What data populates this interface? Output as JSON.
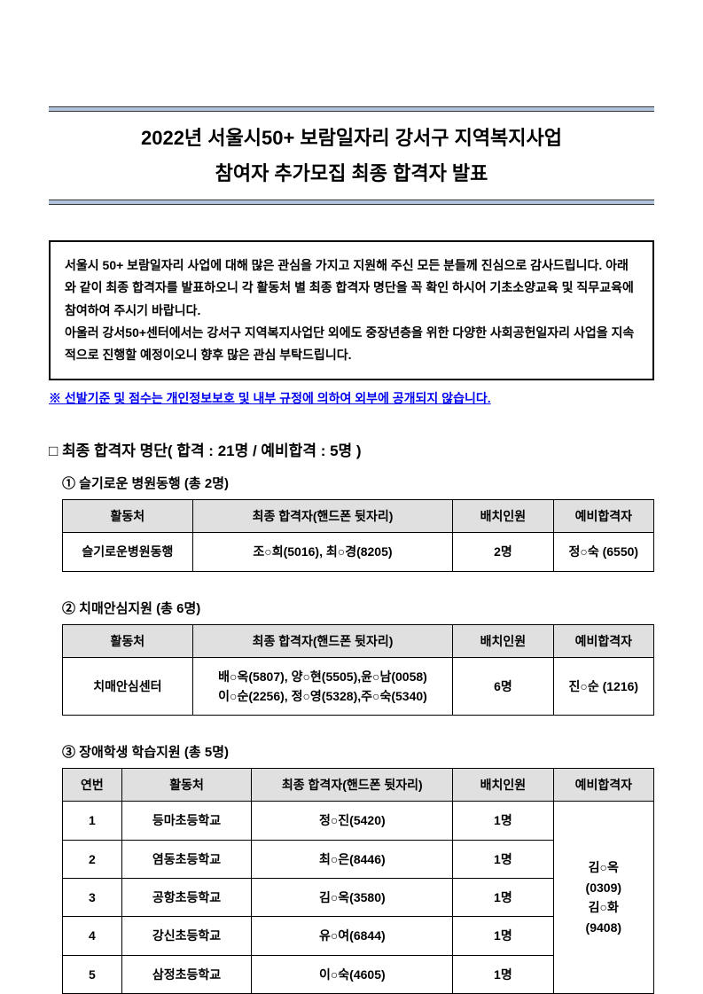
{
  "title": {
    "line1": "2022년 서울시50+ 보람일자리 강서구 지역복지사업",
    "line2": "참여자 추가모집 최종 합격자 발표"
  },
  "notice": {
    "p1": "서울시 50+ 보람일자리 사업에 대해 많은 관심을 가지고 지원해 주신 모든 분들께 진심으로 감사드립니다. 아래와 같이 최종 합격자를  발표하오니 각 활동처 별 최종 합격자 명단을 꼭 확인 하시어 기초소양교육 및 직무교육에 참여하여 주시기 바랍니다.",
    "p2": "아울러 강서50+센터에서는 강서구 지역복지사업단 외에도 중장년층을 위한 다양한 사회공헌일자리 사업을 지속적으로 진행할 예정이오니 향후 많은 관심 부탁드립니다."
  },
  "disclaimer": "※ 선발기준 및 점수는 개인정보보호 및 내부 규정에 의하여 외부에 공개되지 않습니다.",
  "section_header": "□ 최종 합격자 명단( 합격 : 21명 / 예비합격 : 5명 )",
  "headers": {
    "no": "연번",
    "location": "활동처",
    "passed": "최종 합격자(핸드폰 뒷자리)",
    "count": "배치인원",
    "waiting": "예비합격자"
  },
  "section1": {
    "title": "① 슬기로운 병원동행 (총 2명)",
    "row": {
      "location": "슬기로운병원동행",
      "passed": "조○희(5016), 최○경(8205)",
      "count": "2명",
      "waiting": "정○숙 (6550)"
    }
  },
  "section2": {
    "title": "② 치매안심지원 (총 6명)",
    "row": {
      "location": "치매안심센터",
      "passed_line1": "배○옥(5807), 양○현(5505),윤○남(0058)",
      "passed_line2": "이○순(2256), 정○영(5328),주○숙(5340)",
      "count": "6명",
      "waiting": "진○순 (1216)"
    }
  },
  "section3": {
    "title": "③ 장애학생 학습지원 (총 5명)",
    "rows": [
      {
        "no": "1",
        "location": "등마초등학교",
        "passed": "정○진(5420)",
        "count": "1명"
      },
      {
        "no": "2",
        "location": "염동초등학교",
        "passed": "최○은(8446)",
        "count": "1명"
      },
      {
        "no": "3",
        "location": "공항초등학교",
        "passed": "김○옥(3580)",
        "count": "1명"
      },
      {
        "no": "4",
        "location": "강신초등학교",
        "passed": "유○여(6844)",
        "count": "1명"
      },
      {
        "no": "5",
        "location": "삼정초등학교",
        "passed": "이○숙(4605)",
        "count": "1명"
      }
    ],
    "waiting_line1": "김○옥",
    "waiting_line2": "(0309)",
    "waiting_line3": "김○화",
    "waiting_line4": "(9408)"
  }
}
